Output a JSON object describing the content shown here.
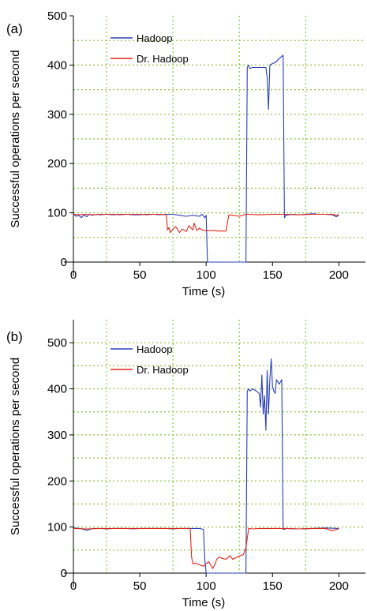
{
  "chart_data": [
    {
      "panel_label": "(a)",
      "type": "line",
      "xlabel": "Time (s)",
      "ylabel": "Successful operations per second",
      "xlim": [
        0,
        220
      ],
      "ylim": [
        0,
        500
      ],
      "xticks": [
        0,
        50,
        100,
        150,
        200
      ],
      "yticks": [
        0,
        100,
        200,
        300,
        400,
        500
      ],
      "grid": true,
      "legend_position": "upper-left",
      "series": [
        {
          "name": "Hadoop",
          "color": "#2b3fb8",
          "x": [
            0,
            2,
            4,
            6,
            8,
            10,
            12,
            14,
            16,
            18,
            20,
            25,
            30,
            35,
            40,
            45,
            50,
            55,
            60,
            65,
            70,
            75,
            80,
            85,
            90,
            95,
            97,
            99,
            100,
            101,
            102,
            110,
            120,
            128,
            130,
            131,
            132,
            133,
            135,
            140,
            145,
            146,
            147,
            148,
            150,
            152,
            155,
            158,
            159,
            160,
            165,
            170,
            175,
            180,
            185,
            190,
            195,
            198,
            200
          ],
          "y": [
            98,
            93,
            95,
            90,
            96,
            92,
            97,
            95,
            96,
            97,
            96,
            97,
            96,
            97,
            97,
            96,
            96,
            97,
            97,
            96,
            97,
            97,
            95,
            93,
            95,
            93,
            97,
            90,
            95,
            0,
            0,
            0,
            0,
            0,
            0,
            395,
            400,
            393,
            395,
            395,
            395,
            375,
            310,
            400,
            403,
            405,
            413,
            420,
            90,
            95,
            97,
            96,
            97,
            98,
            97,
            97,
            96,
            92,
            95
          ]
        },
        {
          "name": "Dr. Hadoop",
          "color": "#e0261c",
          "x": [
            0,
            5,
            10,
            15,
            20,
            25,
            30,
            35,
            40,
            45,
            50,
            55,
            60,
            65,
            70,
            71,
            72,
            73,
            75,
            77,
            80,
            82,
            85,
            87,
            90,
            91,
            93,
            95,
            97,
            100,
            105,
            110,
            115,
            117,
            118,
            120,
            125,
            130,
            140,
            150,
            160,
            170,
            180,
            190,
            195,
            198,
            200
          ],
          "y": [
            97,
            96,
            97,
            96,
            97,
            97,
            97,
            96,
            97,
            97,
            97,
            96,
            97,
            97,
            96,
            65,
            70,
            60,
            67,
            72,
            60,
            67,
            62,
            74,
            65,
            79,
            64,
            69,
            65,
            64,
            64,
            63,
            63,
            95,
            96,
            95,
            93,
            97,
            96,
            97,
            97,
            96,
            97,
            97,
            97,
            95,
            96
          ]
        }
      ]
    },
    {
      "panel_label": "(b)",
      "type": "line",
      "xlabel": "Time (s)",
      "ylabel": "Successful operations per second",
      "xlim": [
        0,
        220
      ],
      "ylim": [
        0,
        550
      ],
      "xticks": [
        0,
        50,
        100,
        150,
        200
      ],
      "yticks": [
        0,
        100,
        200,
        300,
        400,
        500
      ],
      "grid": true,
      "legend_position": "upper-left",
      "series": [
        {
          "name": "Hadoop",
          "color": "#2b3fb8",
          "x": [
            0,
            5,
            10,
            15,
            20,
            25,
            30,
            35,
            40,
            45,
            50,
            55,
            60,
            65,
            70,
            75,
            80,
            85,
            90,
            95,
            98,
            99,
            100,
            101,
            105,
            110,
            120,
            128,
            130,
            131,
            132,
            133,
            135,
            138,
            140,
            141,
            142,
            143,
            144,
            145,
            146,
            147,
            148,
            149,
            150,
            151,
            152,
            153,
            155,
            157,
            158,
            159,
            160,
            170,
            180,
            190,
            200
          ],
          "y": [
            98,
            97,
            93,
            97,
            97,
            96,
            97,
            97,
            97,
            96,
            97,
            97,
            97,
            97,
            97,
            96,
            97,
            97,
            97,
            97,
            95,
            30,
            0,
            0,
            0,
            0,
            0,
            0,
            0,
            395,
            400,
            395,
            400,
            395,
            390,
            360,
            430,
            345,
            385,
            310,
            440,
            345,
            420,
            465,
            405,
            395,
            390,
            420,
            410,
            420,
            95,
            95,
            97,
            96,
            97,
            98,
            97
          ]
        },
        {
          "name": "Dr. Hadoop",
          "color": "#e0261c",
          "x": [
            0,
            10,
            20,
            30,
            40,
            50,
            60,
            70,
            80,
            85,
            88,
            89,
            90,
            92,
            95,
            98,
            100,
            102,
            105,
            107,
            108,
            110,
            112,
            115,
            118,
            120,
            125,
            128,
            130,
            132,
            135,
            140,
            150,
            160,
            170,
            180,
            190,
            195,
            198,
            200
          ],
          "y": [
            97,
            96,
            97,
            97,
            97,
            97,
            97,
            97,
            97,
            97,
            97,
            35,
            20,
            22,
            18,
            15,
            20,
            25,
            10,
            22,
            30,
            35,
            32,
            30,
            38,
            30,
            37,
            40,
            55,
            97,
            96,
            97,
            97,
            97,
            96,
            97,
            97,
            92,
            95,
            96
          ]
        }
      ]
    }
  ]
}
